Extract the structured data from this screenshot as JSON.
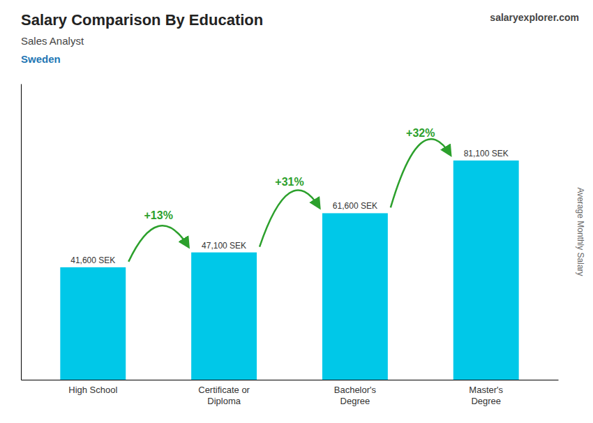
{
  "chart_data": {
    "type": "bar",
    "title": "Salary Comparison By Education",
    "subtitle": "Sales Analyst",
    "ylabel": "Average Monthly Salary",
    "categories": [
      "High School",
      "Certificate or\nDiploma",
      "Bachelor's\nDegree",
      "Master's\nDegree"
    ],
    "values": [
      41600,
      47100,
      61600,
      81100
    ],
    "value_labels": [
      "41,600 SEK",
      "47,100 SEK",
      "61,600 SEK",
      "81,100 SEK"
    ],
    "data_labels": true,
    "color": "#00c8e8",
    "ylim": [
      0,
      109485
    ],
    "yticks": [],
    "tick_labels": "x",
    "annotations": [
      {
        "text": "Sweden"
      },
      {
        "text": "salary"
      },
      {
        "text": "explorer"
      },
      {
        "text": ".com"
      },
      {
        "text": "+13%",
        "from": 0,
        "to": 1
      },
      {
        "text": "+31%",
        "from": 1,
        "to": 2
      },
      {
        "text": "+32%",
        "from": 2,
        "to": 3
      }
    ]
  }
}
